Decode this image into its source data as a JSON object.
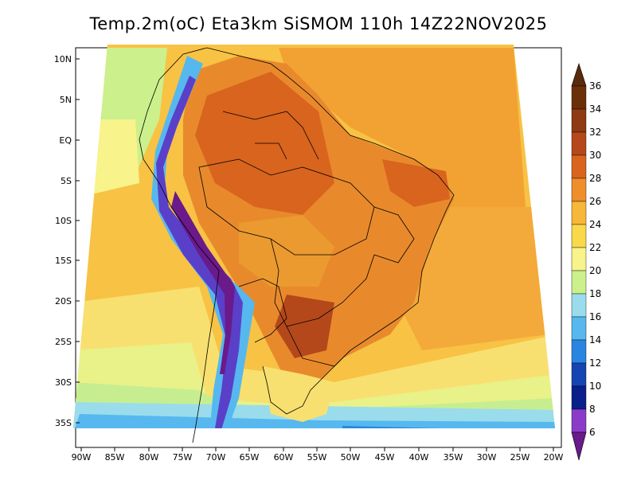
{
  "title": "Temp.2m(oC) Eta3km SiSMOM 110h 14Z22NOV2025",
  "map": {
    "lat_ticks": [
      "10N",
      "5N",
      "EQ",
      "5S",
      "10S",
      "15S",
      "20S",
      "25S",
      "30S",
      "35S"
    ],
    "lon_ticks": [
      "90W",
      "85W",
      "80W",
      "75W",
      "70W",
      "65W",
      "60W",
      "55W",
      "50W",
      "45W",
      "40W",
      "35W",
      "30W",
      "25W",
      "20W"
    ]
  },
  "colorbar": {
    "labels": [
      "36",
      "34",
      "32",
      "30",
      "28",
      "26",
      "24",
      "22",
      "20",
      "18",
      "16",
      "14",
      "12",
      "10",
      "8",
      "6"
    ],
    "colors": [
      "#6b2f0a",
      "#8e3a12",
      "#b4481a",
      "#d9641e",
      "#ee8e2c",
      "#f7b738",
      "#f9d84a",
      "#f8f38a",
      "#ccf08c",
      "#9adcec",
      "#56b8ee",
      "#2a85e0",
      "#1545b0",
      "#0a1f8a",
      "#5a40c8",
      "#8a3cc8",
      "#6a1a8a"
    ]
  }
}
